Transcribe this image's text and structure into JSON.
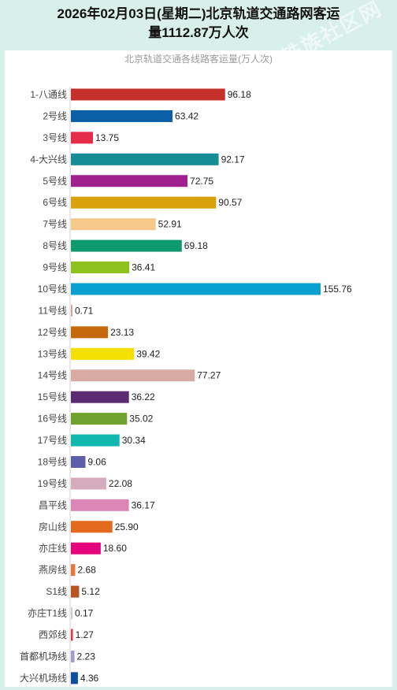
{
  "header": {
    "title_line1": "2026年02月03日(星期二)北京轨道交通路网客运",
    "title_line2": "量1112.87万人次",
    "watermark": "地铁族社区网"
  },
  "chart_data": {
    "type": "bar",
    "orientation": "horizontal",
    "title": "北京轨道交通各线路客运量(万人次)",
    "xlim": [
      0,
      160
    ],
    "grid": false,
    "legend": "none",
    "categories": [
      "1-八通线",
      "2号线",
      "3号线",
      "4-大兴线",
      "5号线",
      "6号线",
      "7号线",
      "8号线",
      "9号线",
      "10号线",
      "11号线",
      "12号线",
      "13号线",
      "14号线",
      "15号线",
      "16号线",
      "17号线",
      "18号线",
      "19号线",
      "昌平线",
      "房山线",
      "亦庄线",
      "燕房线",
      "S1线",
      "亦庄T1线",
      "西郊线",
      "首都机场线",
      "大兴机场线"
    ],
    "values": [
      96.18,
      63.42,
      13.75,
      92.17,
      72.75,
      90.57,
      52.91,
      69.18,
      36.41,
      155.76,
      0.71,
      23.13,
      39.42,
      77.27,
      36.22,
      35.02,
      30.34,
      9.06,
      22.08,
      36.17,
      25.9,
      18.6,
      2.68,
      5.12,
      0.17,
      1.27,
      2.23,
      4.36
    ],
    "labels": [
      "96.18",
      "63.42",
      "13.75",
      "92.17",
      "72.75",
      "90.57",
      "52.91",
      "69.18",
      "36.41",
      "155.76",
      "0.71",
      "23.13",
      "39.42",
      "77.27",
      "36.22",
      "35.02",
      "30.34",
      "9.06",
      "22.08",
      "36.17",
      "25.90",
      "18.60",
      "2.68",
      "5.12",
      "0.17",
      "1.27",
      "2.23",
      "4.36"
    ],
    "colors": [
      "#c6302b",
      "#0b5fa5",
      "#e52c48",
      "#168c95",
      "#a0208e",
      "#d9a10b",
      "#f5c98a",
      "#0e9a6e",
      "#8ec21f",
      "#0aa0cf",
      "#d9a398",
      "#c6690c",
      "#f5e003",
      "#d8aaa4",
      "#5b2c71",
      "#6fa22e",
      "#11b8ad",
      "#5c5ea8",
      "#d6abbe",
      "#dc86b5",
      "#e26b1f",
      "#e4057d",
      "#e4763e",
      "#b75522",
      "#cccccc",
      "#e13a47",
      "#a69cc8",
      "#0a4ea0"
    ]
  }
}
